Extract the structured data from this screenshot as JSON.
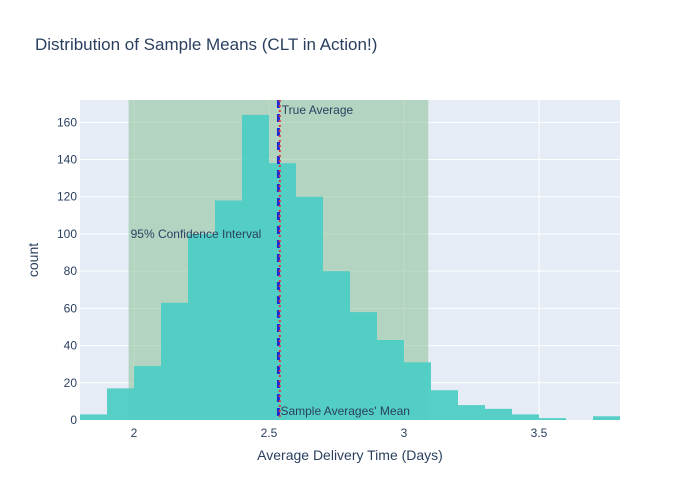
{
  "chart_data": {
    "type": "bar",
    "title": "Distribution of Sample Means (CLT in Action!)",
    "xlabel": "Average Delivery Time (Days)",
    "ylabel": "count",
    "xlim": [
      1.8,
      3.8
    ],
    "ylim": [
      0,
      172
    ],
    "x_ticks": [
      2,
      2.5,
      3,
      3.5
    ],
    "x_tick_labels": [
      "2",
      "2.5",
      "3",
      "3.5"
    ],
    "y_ticks": [
      0,
      20,
      40,
      60,
      80,
      100,
      120,
      140,
      160
    ],
    "y_tick_labels": [
      "0",
      "20",
      "40",
      "60",
      "80",
      "100",
      "120",
      "140",
      "160"
    ],
    "grid": true,
    "bin_width": 0.1,
    "bins": [
      {
        "start": 1.8,
        "end": 1.9,
        "count": 3
      },
      {
        "start": 1.9,
        "end": 2.0,
        "count": 17
      },
      {
        "start": 2.0,
        "end": 2.1,
        "count": 29
      },
      {
        "start": 2.1,
        "end": 2.2,
        "count": 63
      },
      {
        "start": 2.2,
        "end": 2.3,
        "count": 100
      },
      {
        "start": 2.3,
        "end": 2.4,
        "count": 118
      },
      {
        "start": 2.4,
        "end": 2.5,
        "count": 164
      },
      {
        "start": 2.5,
        "end": 2.6,
        "count": 138
      },
      {
        "start": 2.6,
        "end": 2.7,
        "count": 120
      },
      {
        "start": 2.7,
        "end": 2.8,
        "count": 80
      },
      {
        "start": 2.8,
        "end": 2.9,
        "count": 58
      },
      {
        "start": 2.9,
        "end": 3.0,
        "count": 43
      },
      {
        "start": 3.0,
        "end": 3.1,
        "count": 31
      },
      {
        "start": 3.1,
        "end": 3.2,
        "count": 16
      },
      {
        "start": 3.2,
        "end": 3.3,
        "count": 8
      },
      {
        "start": 3.3,
        "end": 3.4,
        "count": 6
      },
      {
        "start": 3.4,
        "end": 3.5,
        "count": 3
      },
      {
        "start": 3.5,
        "end": 3.6,
        "count": 1
      },
      {
        "start": 3.6,
        "end": 3.7,
        "count": 0
      },
      {
        "start": 3.7,
        "end": 3.8,
        "count": 2
      }
    ],
    "confidence_interval": {
      "low": 1.98,
      "high": 3.09,
      "label": "95% Confidence Interval",
      "color": "#92c5a0"
    },
    "true_average": {
      "x": 2.54,
      "label": "True Average",
      "color": "#e23b3b"
    },
    "sample_mean": {
      "x": 2.535,
      "label": "Sample Averages' Mean",
      "color": "#1f2bd0"
    },
    "colors": {
      "bar": "#4ecdc4",
      "plot_bg": "#e5ecf6",
      "grid": "#ffffff",
      "text": "#2a3f5f"
    }
  }
}
